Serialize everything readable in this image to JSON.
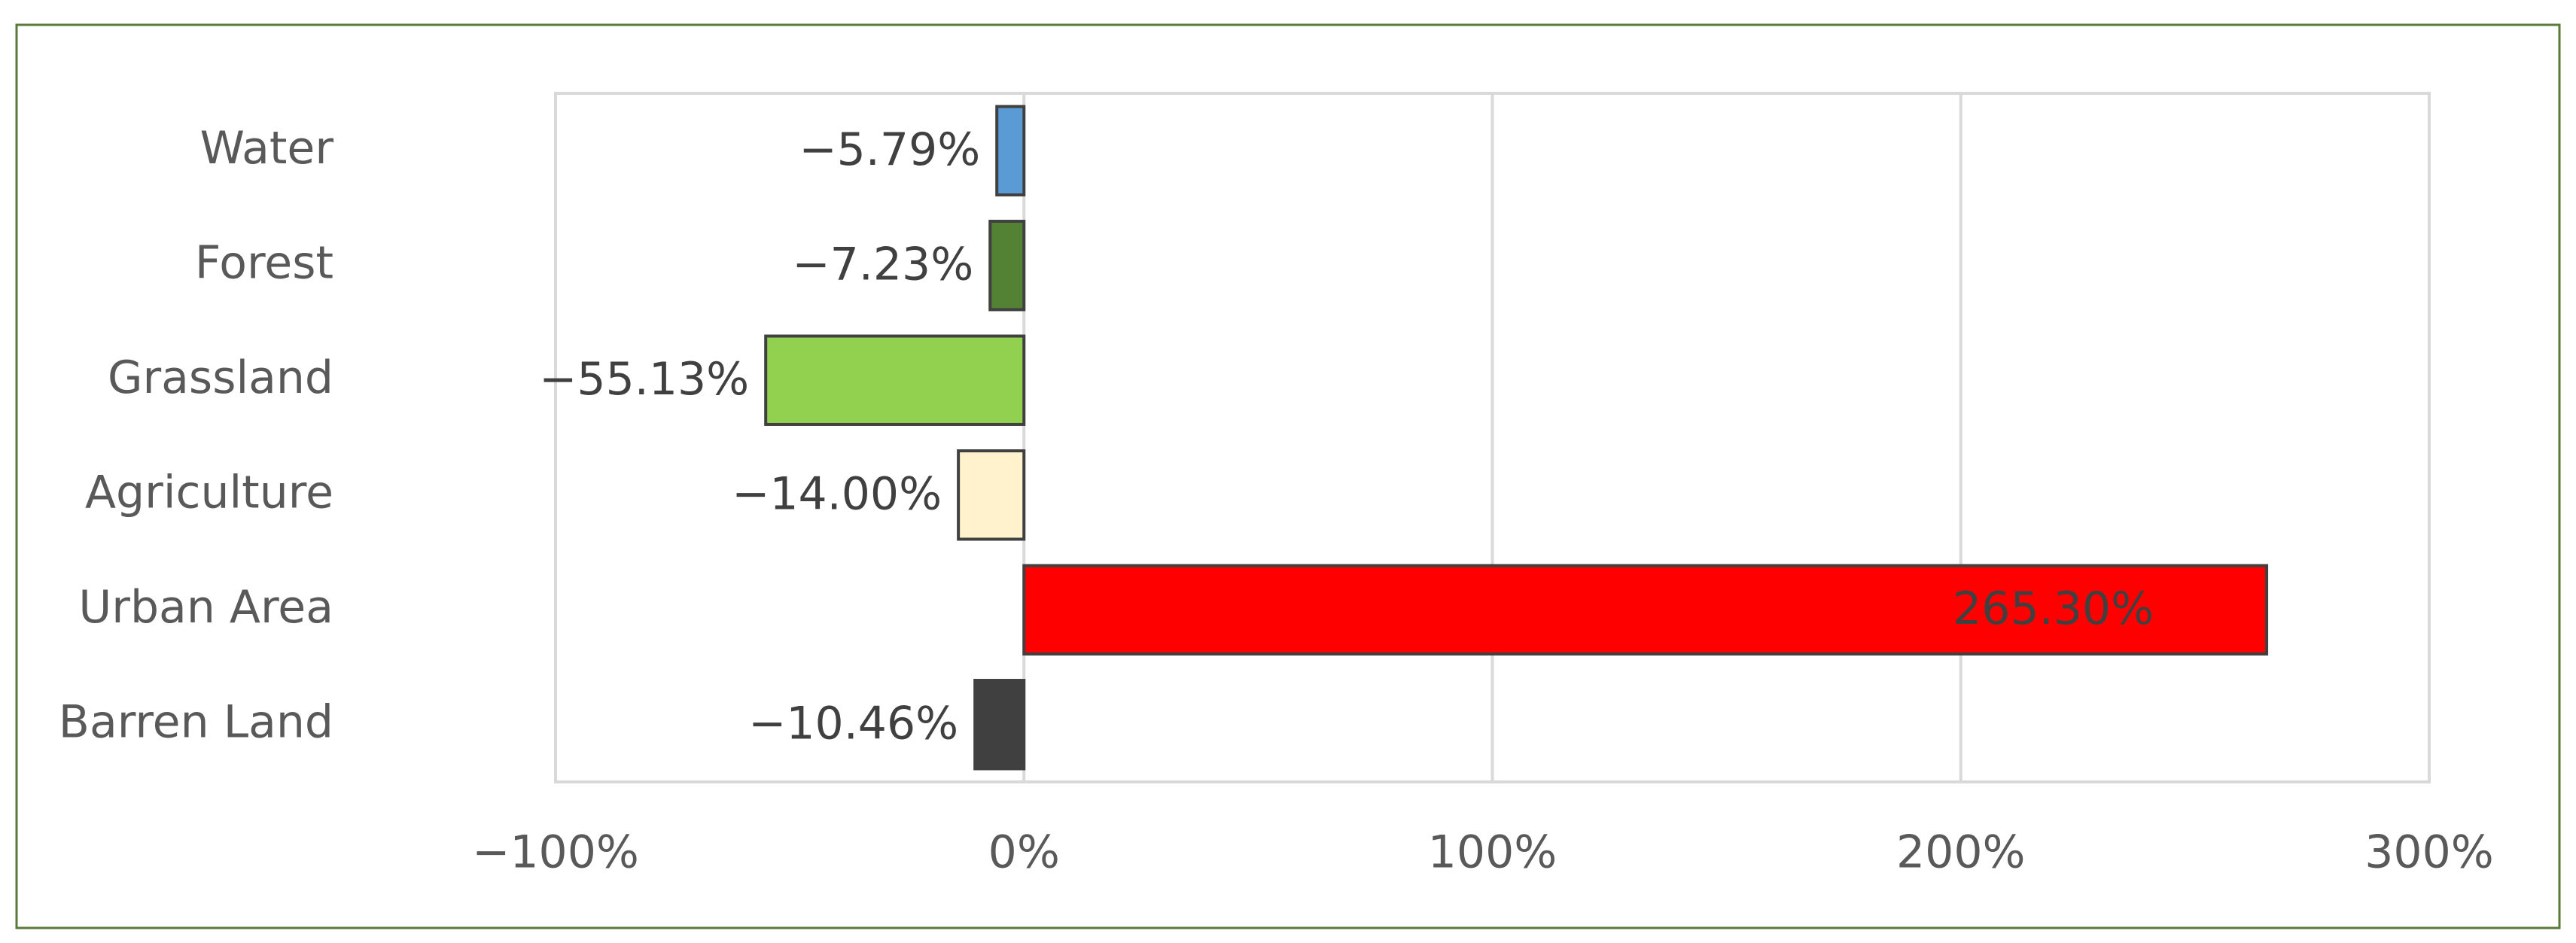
{
  "chart_data": {
    "type": "bar",
    "orientation": "horizontal",
    "categories": [
      "Water",
      "Forest",
      "Grassland",
      "Agriculture",
      "Urban Area",
      "Barren Land"
    ],
    "values": [
      -5.79,
      -7.23,
      -55.13,
      -14.0,
      265.3,
      -10.46
    ],
    "value_labels": [
      "−5.79%",
      "−7.23%",
      "−55.13%",
      "−14.00%",
      "265.30%",
      "−10.46%"
    ],
    "colors": [
      "#5b9bd5",
      "#548235",
      "#92d050",
      "#fff2cc",
      "#ff0000",
      "#404040"
    ],
    "xlim": [
      -100,
      300
    ],
    "xticks": [
      {
        "value": -100,
        "label": "−100%"
      },
      {
        "value": 0,
        "label": "0%"
      },
      {
        "value": 100,
        "label": "100%"
      },
      {
        "value": 200,
        "label": "200%"
      },
      {
        "value": 300,
        "label": "300%"
      }
    ],
    "grid": true
  }
}
